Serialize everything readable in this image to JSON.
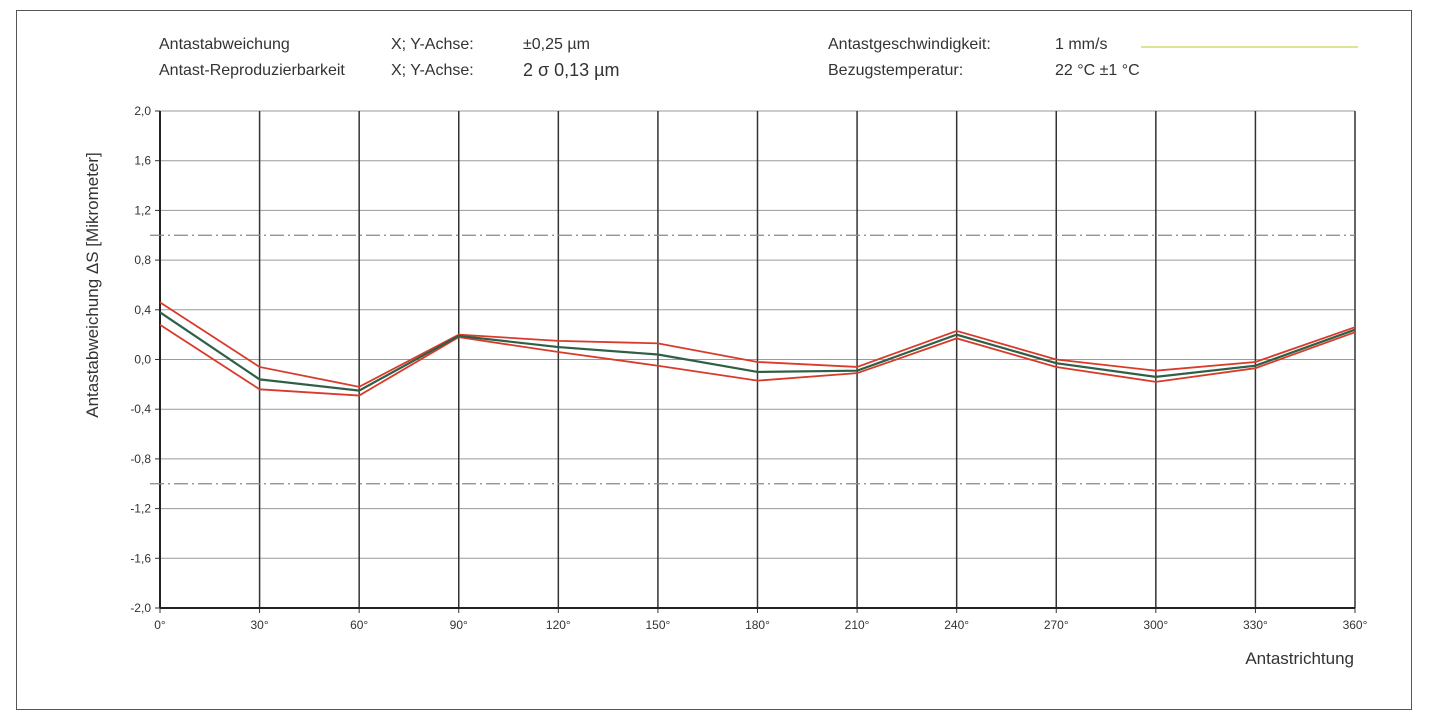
{
  "header": {
    "row1_label": "Antastabweichung",
    "row1_axis": "X; Y-Achse:",
    "row1_value": "±0,25 µm",
    "row2_label": "Antast-Reproduzierbarkeit",
    "row2_axis": "X; Y-Achse:",
    "row2_value": "2 σ 0,13 µm",
    "speed_label": "Antastgeschwindigkeit:",
    "speed_value": "1 mm/s",
    "temp_label": "Bezugstemperatur:",
    "temp_value": "22 °C ±1 °C"
  },
  "colors": {
    "mean_line": "#2f5f46",
    "band_lines": "#d93a2b",
    "speed_legend_line": "#d4dc6a",
    "grid_vertical": "#333333",
    "grid_horizontal": "#9a9a9a",
    "reference_dashdot": "#888888"
  },
  "chart_data": {
    "type": "line",
    "xlabel": "Antastrichtung",
    "ylabel": "Antastabweichung ΔS [Mikrometer]",
    "x": [
      0,
      30,
      60,
      90,
      120,
      150,
      180,
      210,
      240,
      270,
      300,
      330,
      360
    ],
    "x_tick_labels": [
      "0°",
      "30°",
      "60°",
      "90°",
      "120°",
      "150°",
      "180°",
      "210°",
      "240°",
      "270°",
      "300°",
      "330°",
      "360°"
    ],
    "ylim": [
      -2.0,
      2.0
    ],
    "y_ticks": [
      2.0,
      1.6,
      1.2,
      0.8,
      0.4,
      0.0,
      -0.4,
      -0.8,
      -1.2,
      -1.6,
      -2.0
    ],
    "y_tick_labels": [
      "2,0",
      "1,6",
      "1,2",
      "0,8",
      "0,4",
      "0,0",
      "-0,4",
      "-0,8",
      "-1,2",
      "-1,6",
      "-2,0"
    ],
    "grid": true,
    "reference_lines": [
      1.0,
      -1.0
    ],
    "series": [
      {
        "role": "mean",
        "values": [
          0.38,
          -0.16,
          -0.25,
          0.19,
          0.1,
          0.04,
          -0.1,
          -0.09,
          0.2,
          -0.03,
          -0.14,
          -0.05,
          0.24
        ]
      },
      {
        "role": "upper",
        "values": [
          0.46,
          -0.06,
          -0.22,
          0.2,
          0.15,
          0.13,
          -0.02,
          -0.06,
          0.23,
          0.0,
          -0.09,
          -0.02,
          0.26
        ]
      },
      {
        "role": "lower",
        "values": [
          0.28,
          -0.24,
          -0.29,
          0.18,
          0.06,
          -0.05,
          -0.17,
          -0.11,
          0.17,
          -0.06,
          -0.18,
          -0.07,
          0.22
        ]
      }
    ]
  }
}
